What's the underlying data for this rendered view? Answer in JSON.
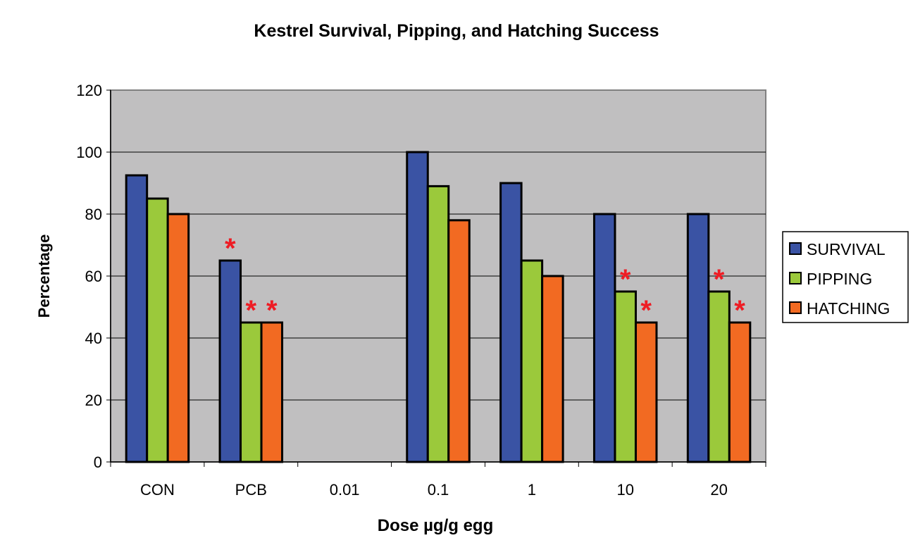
{
  "chart_data": {
    "type": "bar",
    "title": "Kestrel Survival, Pipping, and Hatching Success",
    "xlabel": "Dose µg/g egg",
    "ylabel": "Percentage",
    "ylim": [
      0,
      120
    ],
    "yticks": [
      0,
      20,
      40,
      60,
      80,
      100,
      120
    ],
    "grid": true,
    "legend_position": "right",
    "categories": [
      "CON",
      "PCB",
      "0.01",
      "0.1",
      "1",
      "10",
      "20"
    ],
    "series": [
      {
        "name": "SURVIVAL",
        "color": "#3a53a4",
        "values": [
          92.5,
          65,
          null,
          100,
          90,
          80,
          80
        ],
        "significant": [
          false,
          true,
          false,
          false,
          false,
          false,
          false
        ]
      },
      {
        "name": "PIPPING",
        "color": "#9bc93b",
        "values": [
          85,
          45,
          null,
          89,
          65,
          55,
          55
        ],
        "significant": [
          false,
          true,
          false,
          false,
          false,
          true,
          true
        ]
      },
      {
        "name": "HATCHING",
        "color": "#f26a22",
        "values": [
          80,
          45,
          null,
          78,
          60,
          45,
          45
        ],
        "significant": [
          false,
          true,
          false,
          false,
          false,
          true,
          true
        ]
      }
    ],
    "significance_marker": "*",
    "significance_color": "#ee1c24",
    "plot_background": "#c0bfc0"
  }
}
